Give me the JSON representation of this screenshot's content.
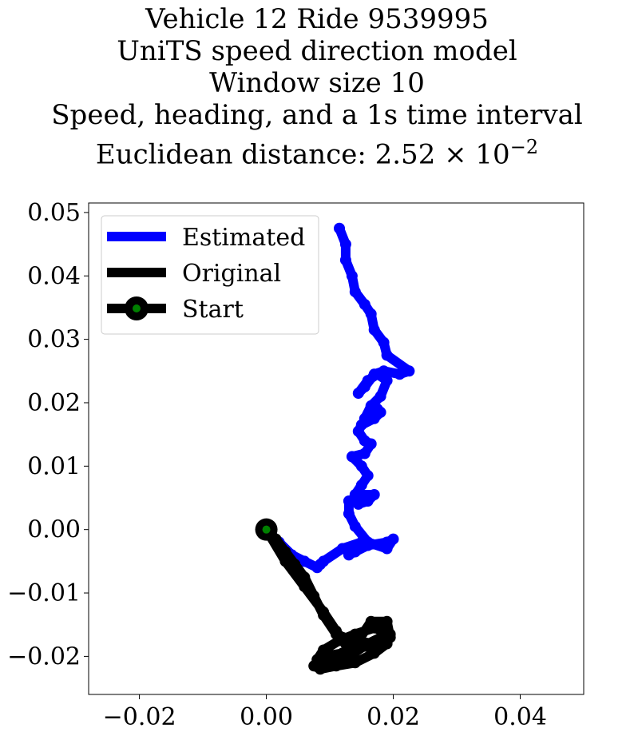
{
  "title": {
    "line1": "Vehicle 12 Ride 9539995",
    "line2": "UniTS speed direction model",
    "line3": "Window size 10",
    "line4": "Speed, heading, and a 1s time interval",
    "line5_prefix": "Euclidean distance: 2.52 × 10",
    "line5_exp": "−2"
  },
  "chart_data": {
    "type": "line",
    "xlim": [
      -0.028,
      0.05
    ],
    "ylim": [
      -0.026,
      0.0515
    ],
    "xticks": [
      -0.02,
      0.0,
      0.02,
      0.04
    ],
    "xtick_labels": [
      "−0.02",
      "0.00",
      "0.02",
      "0.04"
    ],
    "yticks": [
      0.05,
      0.04,
      0.03,
      0.02,
      0.01,
      0.0,
      -0.01,
      -0.02
    ],
    "ytick_labels": [
      "0.05",
      "0.04",
      "0.03",
      "0.02",
      "0.01",
      "0.00",
      "−0.01",
      "−0.02"
    ],
    "grid": false,
    "legend_position": "top-left",
    "legend": [
      "Estimated",
      "Original",
      "Start"
    ],
    "series": [
      {
        "name": "Estimated",
        "color": "#0000ff",
        "x": [
          0.0,
          0.002,
          0.004,
          0.006,
          0.008,
          0.0085,
          0.009,
          0.012,
          0.015,
          0.014,
          0.013,
          0.016,
          0.019,
          0.02,
          0.019,
          0.016,
          0.014,
          0.013,
          0.013,
          0.015,
          0.017,
          0.016,
          0.0145,
          0.014,
          0.015,
          0.016,
          0.015,
          0.0135,
          0.0155,
          0.0165,
          0.0155,
          0.0145,
          0.015,
          0.017,
          0.018,
          0.0175,
          0.0165,
          0.0155,
          0.0165,
          0.018,
          0.019,
          0.0175,
          0.016,
          0.0145,
          0.0155,
          0.017,
          0.0185,
          0.021,
          0.0225,
          0.019,
          0.0185,
          0.017,
          0.0165,
          0.0155,
          0.014,
          0.0135,
          0.0125,
          0.0125,
          0.0115
        ],
        "y": [
          0.0,
          -0.002,
          -0.004,
          -0.005,
          -0.006,
          -0.0055,
          -0.005,
          -0.003,
          -0.002,
          -0.0035,
          -0.004,
          -0.0025,
          -0.002,
          -0.0015,
          -0.003,
          -0.002,
          0.0005,
          0.0025,
          0.0045,
          0.0055,
          0.0055,
          0.0045,
          0.004,
          0.0055,
          0.007,
          0.0085,
          0.01,
          0.0115,
          0.012,
          0.0135,
          0.014,
          0.0155,
          0.0165,
          0.0175,
          0.0185,
          0.019,
          0.0185,
          0.0175,
          0.0195,
          0.021,
          0.0235,
          0.0245,
          0.0235,
          0.0215,
          0.0225,
          0.0245,
          0.025,
          0.0245,
          0.025,
          0.0275,
          0.0295,
          0.0315,
          0.034,
          0.0355,
          0.0375,
          0.04,
          0.0425,
          0.045,
          0.0475
        ]
      },
      {
        "name": "Original",
        "color": "#000000",
        "x": [
          0.0,
          0.003,
          0.006,
          0.009,
          0.011,
          0.0125,
          0.0135,
          0.0145,
          0.0165,
          0.019,
          0.0195,
          0.018,
          0.015,
          0.012,
          0.009,
          0.0075,
          0.0085,
          0.011,
          0.014,
          0.017,
          0.019,
          0.0195,
          0.017,
          0.014,
          0.0115,
          0.009,
          0.008,
          0.0085,
          0.0105,
          0.013,
          0.016,
          0.019,
          0.0195,
          0.017,
          0.0135,
          0.011,
          0.009,
          0.0075,
          0.006,
          0.0045,
          0.003,
          0.0015,
          0.0
        ],
        "y": [
          0.0,
          -0.005,
          -0.009,
          -0.013,
          -0.016,
          -0.018,
          -0.0185,
          -0.0175,
          -0.0145,
          -0.0145,
          -0.017,
          -0.0185,
          -0.0185,
          -0.0195,
          -0.02,
          -0.0215,
          -0.022,
          -0.0215,
          -0.021,
          -0.0195,
          -0.018,
          -0.0165,
          -0.0155,
          -0.0165,
          -0.0175,
          -0.019,
          -0.0205,
          -0.0215,
          -0.021,
          -0.02,
          -0.018,
          -0.0165,
          -0.017,
          -0.018,
          -0.0175,
          -0.0165,
          -0.0135,
          -0.0105,
          -0.0075,
          -0.0055,
          -0.0035,
          -0.0015,
          0.0
        ]
      }
    ],
    "start": {
      "name": "Start",
      "x": 0.0,
      "y": 0.0,
      "marker_edge": "#000000",
      "marker_face": "#008000"
    }
  }
}
